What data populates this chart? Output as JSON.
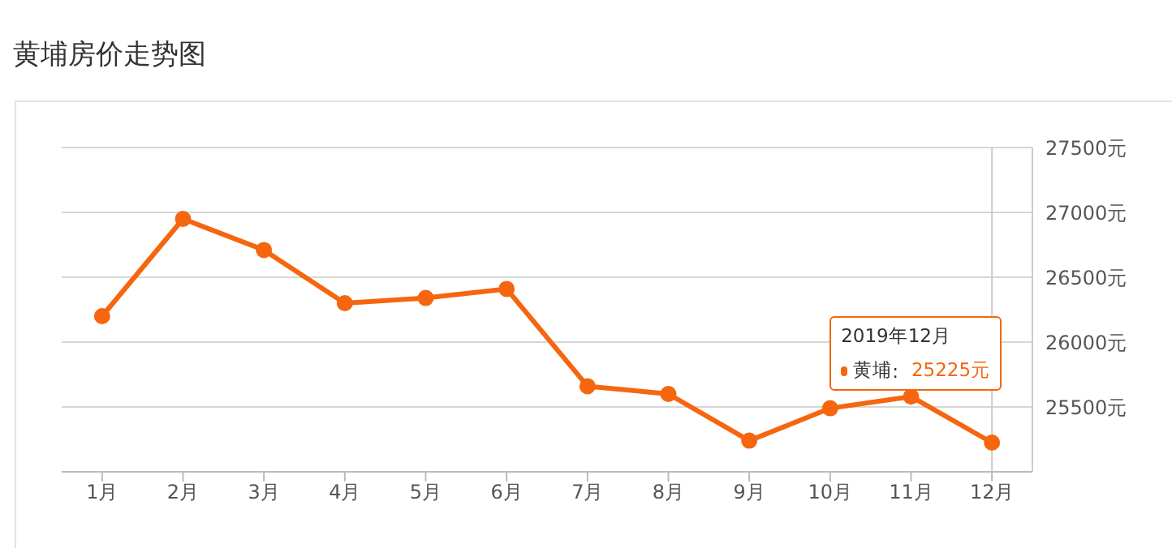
{
  "chart_data": {
    "type": "line",
    "title": "黄埔房价走势图",
    "categories": [
      "1月",
      "2月",
      "3月",
      "4月",
      "5月",
      "6月",
      "7月",
      "8月",
      "9月",
      "10月",
      "11月",
      "12月"
    ],
    "series": [
      {
        "name": "黄埔",
        "color": "#f5660f",
        "values": [
          26200,
          26950,
          26710,
          26300,
          26340,
          26410,
          25660,
          25600,
          25240,
          25490,
          25580,
          25225
        ]
      }
    ],
    "ylim": [
      25000,
      27500
    ],
    "yticks": [
      {
        "value": 25000,
        "label": null
      },
      {
        "value": 25500,
        "label": "25500元"
      },
      {
        "value": 26000,
        "label": "26000元"
      },
      {
        "value": 26500,
        "label": "26500元"
      },
      {
        "value": 27000,
        "label": "27000元"
      },
      {
        "value": 27500,
        "label": "27500元"
      }
    ],
    "grid": "y",
    "marker": "circle",
    "line_style": "solid",
    "legend": "right",
    "ref_lines": [
      {
        "axis": "x",
        "value": "12月",
        "color": "#cccccc"
      }
    ],
    "annotations": [
      "2019年12月",
      ":",
      "25225元"
    ]
  }
}
